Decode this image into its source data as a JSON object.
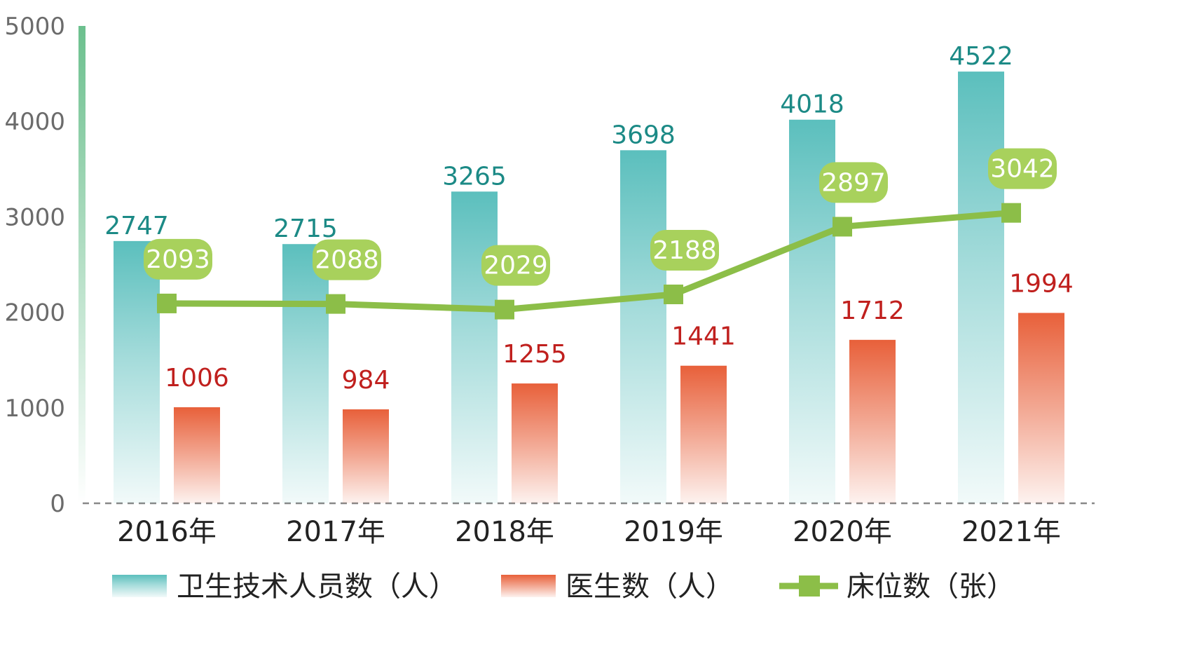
{
  "chart_data": {
    "type": "bar",
    "categories": [
      "2016年",
      "2017年",
      "2018年",
      "2019年",
      "2020年",
      "2021年"
    ],
    "ylim": [
      0,
      5000
    ],
    "yticks": [
      "0",
      "1000",
      "2000",
      "3000",
      "4000",
      "5000"
    ],
    "grid": false,
    "legend_position": "bottom",
    "series": [
      {
        "name": "卫生技术人员数（人）",
        "type": "bar",
        "color": "#5bbfbd",
        "values": [
          2747,
          2715,
          3265,
          3698,
          4018,
          4522
        ]
      },
      {
        "name": "医生数（人）",
        "type": "bar",
        "color": "#e8603a",
        "values": [
          1006,
          984,
          1255,
          1441,
          1712,
          1994
        ]
      },
      {
        "name": "床位数（张）",
        "type": "line",
        "color": "#8cbe48",
        "values": [
          2093,
          2088,
          2029,
          2188,
          2897,
          3042
        ]
      }
    ]
  },
  "colors": {
    "bar_a_top": "#5bbfbd",
    "bar_b_top": "#e8603a",
    "line": "#8cbe48",
    "label_box": "#a8d15c",
    "label_a": "#1c8a86",
    "label_b": "#c0201e",
    "axis_bar": "#6cc08e",
    "baseline": "#888888"
  }
}
